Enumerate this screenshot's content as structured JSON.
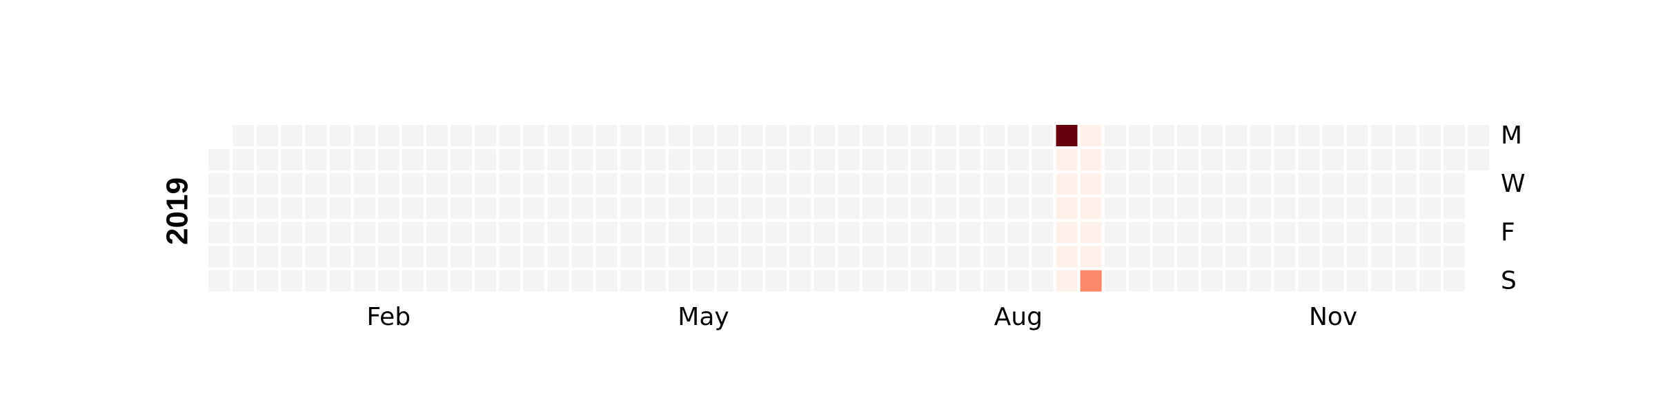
{
  "chart_data": {
    "type": "heatmap",
    "year": "2019",
    "year_label": "2019",
    "month_labels": [
      {
        "label": "Feb",
        "week": 7
      },
      {
        "label": "May",
        "week": 20
      },
      {
        "label": "Aug",
        "week": 33
      },
      {
        "label": "Nov",
        "week": 46
      }
    ],
    "weekday_labels": [
      {
        "label": "M",
        "day": 0
      },
      {
        "label": "W",
        "day": 2
      },
      {
        "label": "F",
        "day": 4
      },
      {
        "label": "S",
        "day": 6
      }
    ],
    "first_weekday": 1,
    "weeks": 53,
    "empty_color": "#f4f4f4",
    "colormap": "Reds",
    "vmin": 0,
    "vmax": 10,
    "cells": [
      {
        "week": 35,
        "day": 0,
        "value": 10
      },
      {
        "week": 35,
        "day": 1,
        "value": 0.3
      },
      {
        "week": 35,
        "day": 2,
        "value": 0.3
      },
      {
        "week": 35,
        "day": 3,
        "value": 0.3
      },
      {
        "week": 35,
        "day": 4,
        "value": 0.3
      },
      {
        "week": 35,
        "day": 5,
        "value": 0.3
      },
      {
        "week": 35,
        "day": 6,
        "value": 0.3
      },
      {
        "week": 36,
        "day": 0,
        "value": 0.3
      },
      {
        "week": 36,
        "day": 1,
        "value": 0.3
      },
      {
        "week": 36,
        "day": 2,
        "value": 0.3
      },
      {
        "week": 36,
        "day": 3,
        "value": 0.3
      },
      {
        "week": 36,
        "day": 4,
        "value": 0.3
      },
      {
        "week": 36,
        "day": 5,
        "value": 0.3
      },
      {
        "week": 36,
        "day": 6,
        "value": 4
      }
    ]
  }
}
